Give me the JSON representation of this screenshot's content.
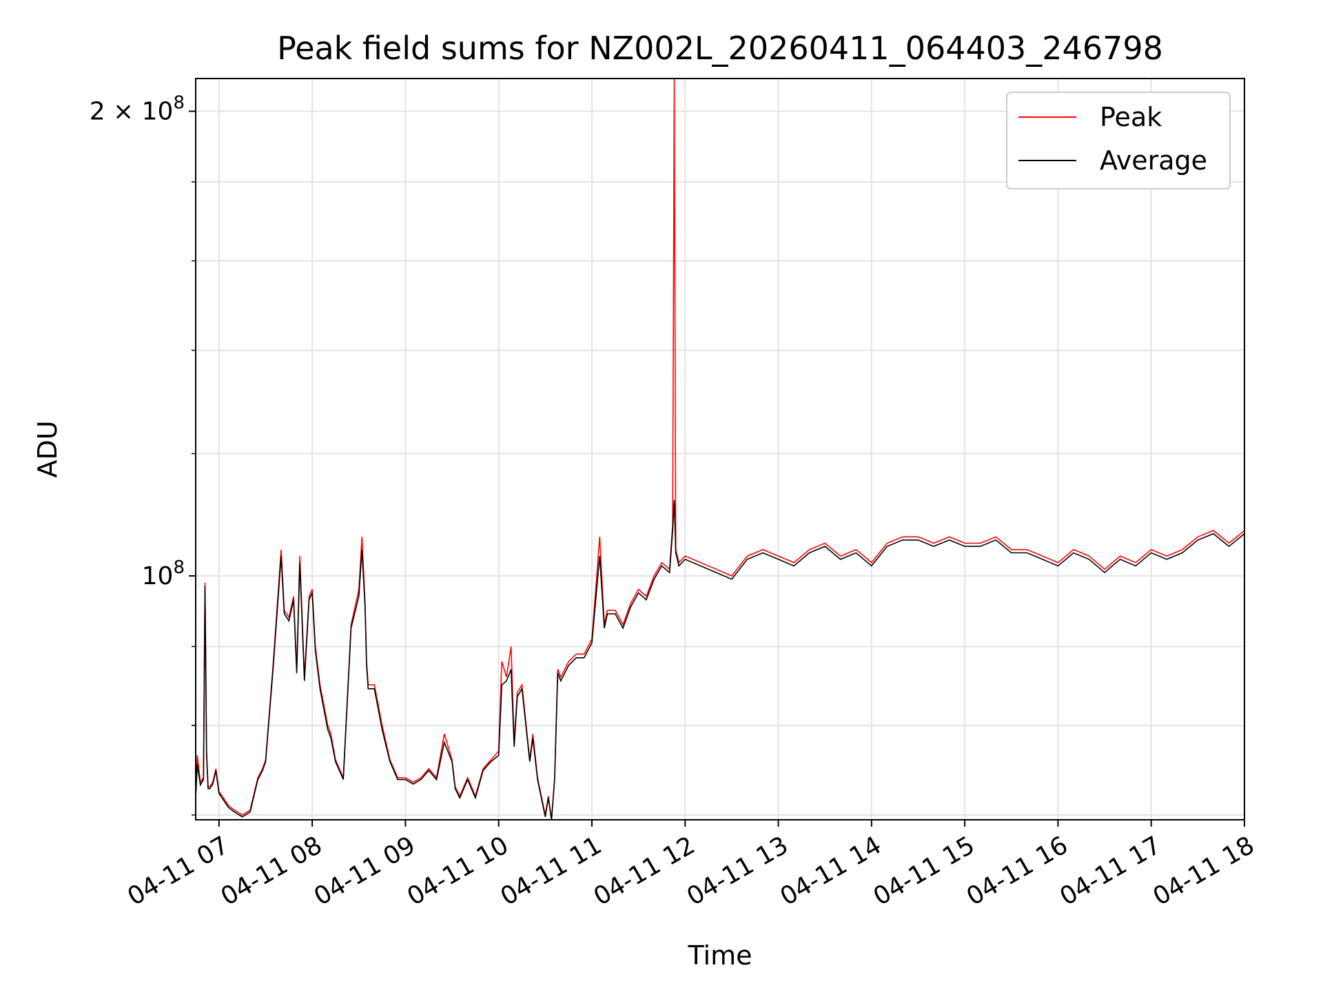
{
  "chart_data": {
    "type": "line",
    "title": "Peak field sums for NZ002L_20260411_064403_246798",
    "xlabel": "Time",
    "ylabel": "ADU",
    "yscale": "log",
    "grid": true,
    "legend_position": "top-right",
    "x_tick_labels": [
      "04-11 07",
      "04-11 08",
      "04-11 09",
      "04-11 10",
      "04-11 11",
      "04-11 12",
      "04-11 13",
      "04-11 14",
      "04-11 15",
      "04-11 16",
      "04-11 17",
      "04-11 18"
    ],
    "y_tick_labels": [
      {
        "value": 100000000,
        "label": "10^8"
      },
      {
        "value": 200000000,
        "label": "2 × 10^8"
      }
    ],
    "xlim": [
      "04-11 06:45",
      "04-11 18:00"
    ],
    "ylim": [
      69500000,
      210000000
    ],
    "series": [
      {
        "name": "Peak",
        "color": "#ff0000",
        "x": [
          "06:45",
          "06:46",
          "06:48",
          "06:50",
          "06:51",
          "06:52",
          "06:53",
          "06:54",
          "06:56",
          "06:58",
          "07:00",
          "07:02",
          "07:06",
          "07:10",
          "07:15",
          "07:20",
          "07:25",
          "07:28",
          "07:30",
          "07:35",
          "07:40",
          "07:42",
          "07:45",
          "07:48",
          "07:50",
          "07:52",
          "07:55",
          "07:58",
          "08:00",
          "08:02",
          "08:05",
          "08:08",
          "08:10",
          "08:12",
          "08:15",
          "08:20",
          "08:25",
          "08:30",
          "08:32",
          "08:34",
          "08:35",
          "08:36",
          "08:38",
          "08:40",
          "08:45",
          "08:50",
          "08:55",
          "09:00",
          "09:05",
          "09:10",
          "09:15",
          "09:20",
          "09:25",
          "09:30",
          "09:32",
          "09:35",
          "09:40",
          "09:45",
          "09:50",
          "09:55",
          "10:00",
          "10:02",
          "10:05",
          "10:08",
          "10:10",
          "10:12",
          "10:15",
          "10:20",
          "10:22",
          "10:25",
          "10:30",
          "10:32",
          "10:34",
          "10:36",
          "10:38",
          "10:40",
          "10:45",
          "10:50",
          "10:55",
          "11:00",
          "11:05",
          "11:08",
          "11:10",
          "11:15",
          "11:20",
          "11:25",
          "11:30",
          "11:35",
          "11:40",
          "11:45",
          "11:50",
          "11:52",
          "11:53",
          "11:54",
          "11:55",
          "11:56",
          "12:00",
          "12:10",
          "12:20",
          "12:30",
          "12:40",
          "12:50",
          "13:00",
          "13:10",
          "13:20",
          "13:30",
          "13:40",
          "13:50",
          "14:00",
          "14:10",
          "14:20",
          "14:30",
          "14:40",
          "14:50",
          "15:00",
          "15:10",
          "15:20",
          "15:30",
          "15:40",
          "15:50",
          "16:00",
          "16:10",
          "16:20",
          "16:30",
          "16:40",
          "16:50",
          "17:00",
          "17:10",
          "17:20",
          "17:30",
          "17:40",
          "17:50",
          "18:00"
        ],
        "values": [
          72000000,
          76500000,
          73500000,
          74000000,
          99000000,
          77000000,
          73000000,
          73000000,
          73500000,
          75000000,
          72500000,
          72000000,
          71000000,
          70500000,
          70000000,
          70500000,
          74000000,
          75000000,
          76000000,
          88000000,
          104000000,
          95000000,
          94000000,
          97000000,
          87000000,
          103000000,
          86000000,
          97000000,
          98000000,
          90000000,
          85000000,
          82000000,
          80000000,
          79000000,
          76000000,
          74000000,
          93000000,
          98000000,
          106000000,
          96000000,
          88000000,
          85000000,
          85000000,
          85000000,
          80000000,
          76000000,
          74000000,
          74000000,
          73500000,
          74000000,
          75000000,
          74000000,
          79000000,
          76000000,
          73000000,
          72000000,
          74000000,
          72000000,
          75000000,
          76000000,
          77000000,
          88000000,
          86000000,
          90000000,
          78000000,
          84000000,
          85000000,
          76000000,
          79000000,
          74000000,
          70000000,
          72000000,
          69500000,
          74000000,
          87000000,
          86000000,
          88000000,
          89000000,
          89000000,
          91000000,
          106000000,
          93000000,
          95000000,
          95000000,
          93000000,
          96000000,
          98000000,
          97000000,
          100000000,
          102000000,
          101000000,
          108000000,
          210000000,
          104000000,
          103000000,
          102000000,
          103000000,
          102000000,
          101000000,
          100000000,
          103000000,
          104000000,
          103000000,
          102000000,
          104000000,
          105000000,
          103000000,
          104000000,
          102000000,
          105000000,
          106000000,
          106000000,
          105000000,
          106000000,
          105000000,
          105000000,
          106000000,
          104000000,
          104000000,
          103000000,
          102000000,
          104000000,
          103000000,
          101000000,
          103000000,
          102000000,
          104000000,
          103000000,
          104000000,
          106000000,
          107000000,
          105000000,
          107000000
        ]
      },
      {
        "name": "Average",
        "color": "#000000",
        "x": [
          "06:45",
          "06:46",
          "06:48",
          "06:50",
          "06:51",
          "06:52",
          "06:53",
          "06:54",
          "06:56",
          "06:58",
          "07:00",
          "07:02",
          "07:06",
          "07:10",
          "07:15",
          "07:20",
          "07:25",
          "07:28",
          "07:30",
          "07:35",
          "07:40",
          "07:42",
          "07:45",
          "07:48",
          "07:50",
          "07:52",
          "07:55",
          "07:58",
          "08:00",
          "08:02",
          "08:05",
          "08:08",
          "08:10",
          "08:12",
          "08:15",
          "08:20",
          "08:25",
          "08:30",
          "08:32",
          "08:34",
          "08:35",
          "08:36",
          "08:38",
          "08:40",
          "08:45",
          "08:50",
          "08:55",
          "09:00",
          "09:05",
          "09:10",
          "09:15",
          "09:20",
          "09:25",
          "09:30",
          "09:32",
          "09:35",
          "09:40",
          "09:45",
          "09:50",
          "09:55",
          "10:00",
          "10:02",
          "10:05",
          "10:08",
          "10:10",
          "10:12",
          "10:15",
          "10:20",
          "10:22",
          "10:25",
          "10:30",
          "10:32",
          "10:34",
          "10:36",
          "10:38",
          "10:40",
          "10:45",
          "10:50",
          "10:55",
          "11:00",
          "11:05",
          "11:08",
          "11:10",
          "11:15",
          "11:20",
          "11:25",
          "11:30",
          "11:35",
          "11:40",
          "11:45",
          "11:50",
          "11:52",
          "11:53",
          "11:54",
          "11:55",
          "11:56",
          "12:00",
          "12:10",
          "12:20",
          "12:30",
          "12:40",
          "12:50",
          "13:00",
          "13:10",
          "13:20",
          "13:30",
          "13:40",
          "13:50",
          "14:00",
          "14:10",
          "14:20",
          "14:30",
          "14:40",
          "14:50",
          "15:00",
          "15:10",
          "15:20",
          "15:30",
          "15:40",
          "15:50",
          "16:00",
          "16:10",
          "16:20",
          "16:30",
          "16:40",
          "16:50",
          "17:00",
          "17:10",
          "17:20",
          "17:30",
          "17:40",
          "17:50",
          "18:00"
        ],
        "values": [
          71800000,
          75500000,
          73200000,
          73800000,
          98500000,
          76500000,
          72800000,
          72800000,
          73300000,
          74800000,
          72300000,
          71800000,
          70800000,
          70300000,
          69800000,
          70300000,
          73800000,
          74800000,
          75800000,
          87500000,
          103000000,
          94500000,
          93500000,
          96500000,
          86500000,
          102000000,
          85500000,
          96500000,
          97500000,
          89500000,
          84500000,
          81500000,
          79500000,
          78500000,
          75800000,
          73800000,
          92500000,
          97000000,
          104000000,
          95500000,
          87500000,
          84500000,
          84500000,
          84500000,
          79500000,
          75800000,
          73800000,
          73800000,
          73300000,
          73800000,
          74800000,
          73800000,
          78000000,
          75800000,
          72800000,
          71800000,
          73800000,
          71800000,
          74800000,
          75800000,
          76500000,
          85000000,
          85500000,
          87000000,
          77500000,
          83500000,
          84500000,
          75800000,
          78500000,
          73800000,
          69800000,
          71800000,
          69300000,
          73800000,
          86500000,
          85500000,
          87500000,
          88500000,
          88500000,
          90500000,
          103000000,
          92500000,
          94500000,
          94500000,
          92500000,
          95500000,
          97500000,
          96500000,
          99500000,
          101500000,
          100500000,
          107000000,
          112000000,
          103500000,
          102500000,
          101500000,
          102500000,
          101500000,
          100500000,
          99500000,
          102500000,
          103500000,
          102500000,
          101500000,
          103500000,
          104500000,
          102500000,
          103500000,
          101500000,
          104500000,
          105500000,
          105500000,
          104500000,
          105500000,
          104500000,
          104500000,
          105500000,
          103500000,
          103500000,
          102500000,
          101500000,
          103500000,
          102500000,
          100500000,
          102500000,
          101500000,
          103500000,
          102500000,
          103500000,
          105500000,
          106500000,
          104500000,
          106500000
        ]
      }
    ]
  }
}
